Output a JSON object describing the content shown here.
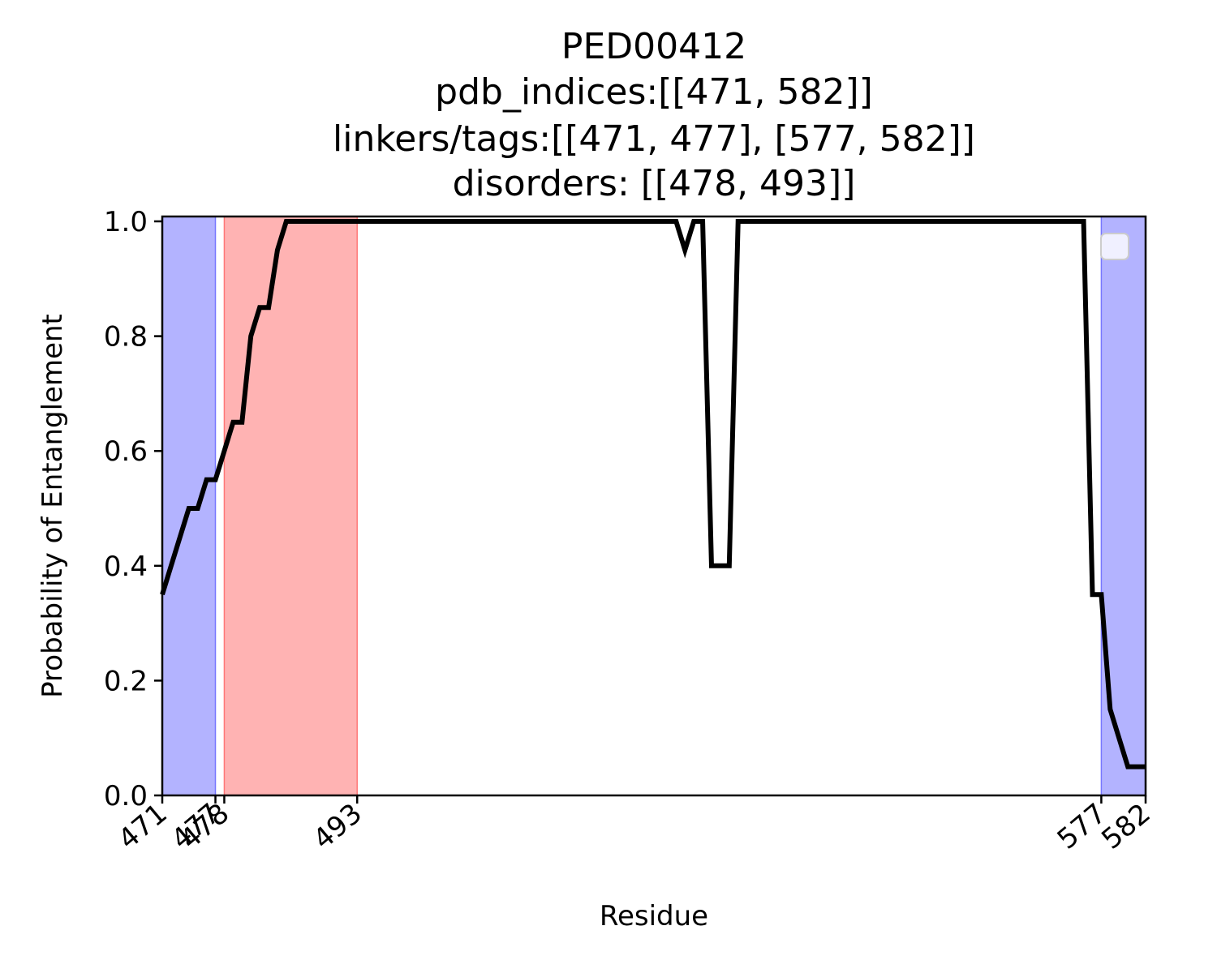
{
  "chart_data": {
    "type": "line",
    "title_lines": [
      "PED00412",
      "pdb_indices:[[471, 582]]",
      "linkers/tags:[[471, 477], [577, 582]]",
      "disorders: [[478, 493]]"
    ],
    "xlabel": "Residue",
    "ylabel": "Probability of Entanglement",
    "xlim": [
      471,
      582
    ],
    "ylim": [
      0.0,
      1.0
    ],
    "xticks": [
      471,
      477,
      478,
      493,
      577,
      582
    ],
    "xtick_labels": [
      "471",
      "477",
      "478",
      "493",
      "577",
      "582"
    ],
    "yticks": [
      0.0,
      0.2,
      0.4,
      0.6,
      0.8,
      1.0
    ],
    "ytick_labels": [
      "0.0",
      "0.2",
      "0.4",
      "0.6",
      "0.8",
      "1.0"
    ],
    "shaded_regions": [
      {
        "kind": "linker/tag",
        "start": 471,
        "end": 477,
        "color": "#b3b3ff",
        "edge": "#7777ff"
      },
      {
        "kind": "disorder",
        "start": 478,
        "end": 493,
        "color": "#ffb3b3",
        "edge": "#ff7777"
      },
      {
        "kind": "linker/tag",
        "start": 577,
        "end": 582,
        "color": "#b3b3ff",
        "edge": "#7777ff"
      }
    ],
    "series": [
      {
        "color": "#000000",
        "x": [
          471,
          472,
          473,
          474,
          475,
          476,
          477,
          478,
          479,
          480,
          481,
          482,
          483,
          484,
          485,
          486,
          487,
          488,
          489,
          490,
          491,
          492,
          493,
          494,
          495,
          496,
          497,
          498,
          499,
          500,
          501,
          502,
          503,
          504,
          505,
          506,
          507,
          508,
          509,
          510,
          511,
          512,
          513,
          514,
          515,
          516,
          517,
          518,
          519,
          520,
          521,
          522,
          523,
          524,
          525,
          526,
          527,
          528,
          529,
          530,
          531,
          532,
          533,
          534,
          535,
          536,
          537,
          538,
          539,
          540,
          541,
          542,
          543,
          544,
          545,
          546,
          547,
          548,
          549,
          550,
          551,
          552,
          553,
          554,
          555,
          556,
          557,
          558,
          559,
          560,
          561,
          562,
          563,
          564,
          565,
          566,
          567,
          568,
          569,
          570,
          571,
          572,
          573,
          574,
          575,
          576,
          577,
          578,
          579,
          580,
          581,
          582
        ],
        "y": [
          0.35,
          0.4,
          0.45,
          0.5,
          0.5,
          0.55,
          0.55,
          0.6,
          0.65,
          0.65,
          0.8,
          0.85,
          0.85,
          0.95,
          1.0,
          1.0,
          1.0,
          1.0,
          1.0,
          1.0,
          1.0,
          1.0,
          1.0,
          1.0,
          1.0,
          1.0,
          1.0,
          1.0,
          1.0,
          1.0,
          1.0,
          1.0,
          1.0,
          1.0,
          1.0,
          1.0,
          1.0,
          1.0,
          1.0,
          1.0,
          1.0,
          1.0,
          1.0,
          1.0,
          1.0,
          1.0,
          1.0,
          1.0,
          1.0,
          1.0,
          1.0,
          1.0,
          1.0,
          1.0,
          1.0,
          1.0,
          1.0,
          1.0,
          1.0,
          0.95,
          1.0,
          1.0,
          0.4,
          0.4,
          0.4,
          1.0,
          1.0,
          1.0,
          1.0,
          1.0,
          1.0,
          1.0,
          1.0,
          1.0,
          1.0,
          1.0,
          1.0,
          1.0,
          1.0,
          1.0,
          1.0,
          1.0,
          1.0,
          1.0,
          1.0,
          1.0,
          1.0,
          1.0,
          1.0,
          1.0,
          1.0,
          1.0,
          1.0,
          1.0,
          1.0,
          1.0,
          1.0,
          1.0,
          1.0,
          1.0,
          1.0,
          1.0,
          1.0,
          1.0,
          1.0,
          0.35,
          0.35,
          0.15,
          0.1,
          0.05,
          0.05,
          0.05
        ]
      }
    ],
    "legend": {
      "placement": "upper right",
      "entries": []
    },
    "grid": false
  }
}
